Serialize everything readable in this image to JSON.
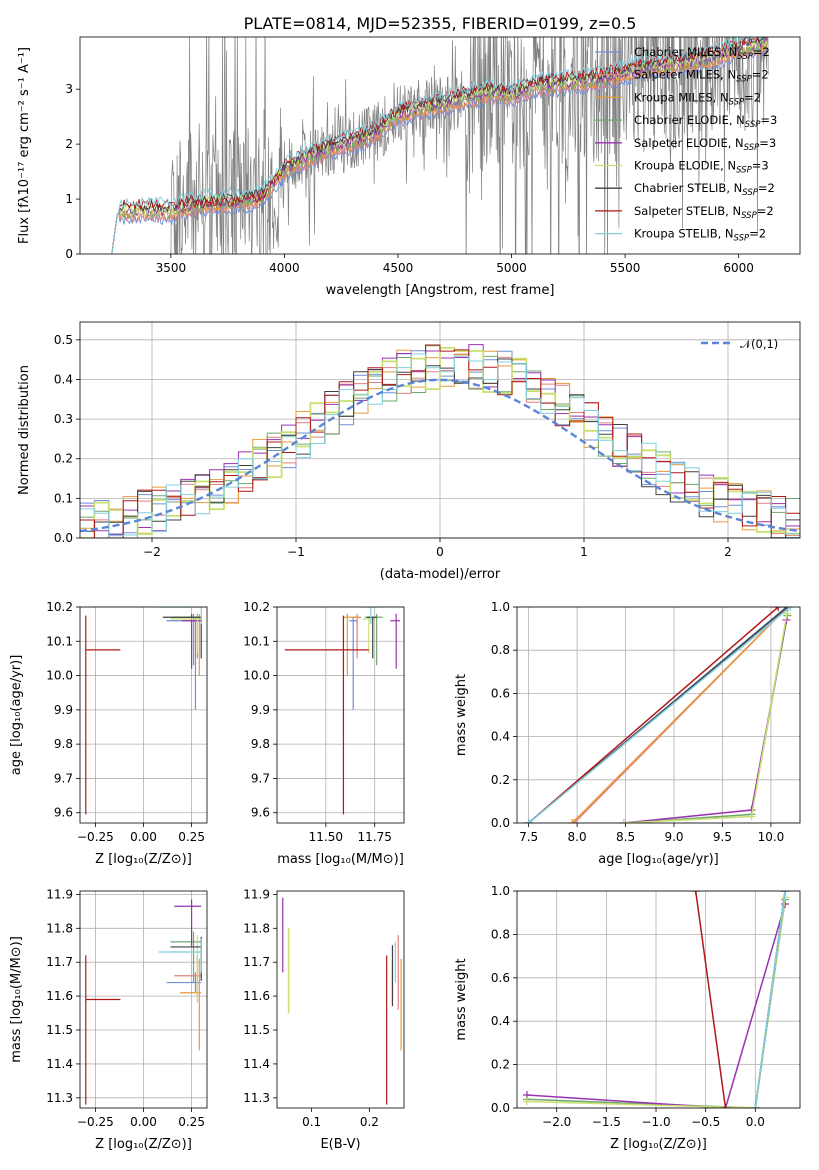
{
  "figure_title": "PLATE=0814, MJD=52355, FIBERID=0199, z=0.5",
  "models": [
    {
      "name": "Chabrier MILES, N",
      "sub": "SSP",
      "tail": "=2",
      "color": "#6f8fd8"
    },
    {
      "name": "Salpeter MILES, N",
      "sub": "SSP",
      "tail": "=2",
      "color": "#e08080"
    },
    {
      "name": "Kroupa MILES, N",
      "sub": "SSP",
      "tail": "=2",
      "color": "#e89a3c"
    },
    {
      "name": "Chabrier ELODIE, N",
      "sub": "SSP",
      "tail": "=3",
      "color": "#6fa86f"
    },
    {
      "name": "Salpeter ELODIE, N",
      "sub": "SSP",
      "tail": "=3",
      "color": "#9932b0"
    },
    {
      "name": "Kroupa ELODIE, N",
      "sub": "SSP",
      "tail": "=3",
      "color": "#c8e070"
    },
    {
      "name": "Chabrier STELIB, N",
      "sub": "SSP",
      "tail": "=2",
      "color": "#404040"
    },
    {
      "name": "Salpeter STELIB, N",
      "sub": "SSP",
      "tail": "=2",
      "color": "#b01818"
    },
    {
      "name": "Kroupa STELIB, N",
      "sub": "SSP",
      "tail": "=2",
      "color": "#80d0e0"
    }
  ],
  "data_color": "#808080",
  "chart_data": [
    {
      "id": "spectrum",
      "type": "line",
      "xlabel": "wavelength [Angstrom, rest frame]",
      "ylabel": "Flux [fλ10⁻¹⁷ erg cm⁻² s⁻¹ A⁻¹]",
      "xlim": [
        3100,
        6270
      ],
      "ylim": [
        0,
        3.95
      ],
      "xticks": [
        3500,
        4000,
        4500,
        5000,
        5500,
        6000
      ],
      "yticks": [
        0,
        1,
        2,
        3
      ],
      "observed_range": [
        3240,
        6130
      ],
      "model_curve": {
        "x": [
          3240,
          3265,
          3300,
          3400,
          3500,
          3600,
          3700,
          3800,
          3900,
          4000,
          4100,
          4200,
          4300,
          4400,
          4500,
          4600,
          4700,
          4800,
          4900,
          5000,
          5100,
          5200,
          5300,
          5400,
          5500,
          5600,
          5700,
          5800,
          5900,
          6000,
          6130
        ],
        "y": [
          0.0,
          0.75,
          0.78,
          0.8,
          0.78,
          0.9,
          0.95,
          0.96,
          1.05,
          1.55,
          1.75,
          1.95,
          2.05,
          2.2,
          2.55,
          2.65,
          2.75,
          2.85,
          2.95,
          2.9,
          3.05,
          3.1,
          3.15,
          3.2,
          3.3,
          3.4,
          3.45,
          3.5,
          3.6,
          3.75,
          3.85
        ]
      }
    },
    {
      "id": "residuals",
      "type": "line",
      "xlabel": "(data-model)/error",
      "ylabel": "Normed distribution",
      "xlim": [
        -2.5,
        2.5
      ],
      "ylim": [
        0,
        0.545
      ],
      "xticks": [
        -2,
        -1,
        0,
        1,
        2
      ],
      "yticks": [
        0.0,
        0.1,
        0.2,
        0.3,
        0.4,
        0.5
      ],
      "legend": "𝒩(0,1)",
      "normal": {
        "mean": 0,
        "sigma": 1
      }
    },
    {
      "id": "age-vs-Z",
      "type": "scatter",
      "xlabel": "Z [log₁₀(Z/Z⊙)]",
      "ylabel": "age  [log₁₀(age/yr)]",
      "xlim": [
        -0.33,
        0.33
      ],
      "ylim": [
        9.57,
        10.2
      ],
      "xticks": [
        -0.25,
        0.0,
        0.25
      ],
      "yticks": [
        9.6,
        9.7,
        9.8,
        9.9,
        10.0,
        10.1,
        10.2
      ],
      "points": [
        {
          "model": 0,
          "x": 0.27,
          "y": 10.16,
          "xerr": [
            0.15,
            0.03
          ],
          "yerr": [
            0.26,
            0.01
          ]
        },
        {
          "model": 1,
          "x": 0.28,
          "y": 10.17,
          "xerr": [
            0.12,
            0.02
          ],
          "yerr": [
            0.12,
            0.01
          ]
        },
        {
          "model": 2,
          "x": 0.29,
          "y": 10.17,
          "xerr": [
            0.1,
            0.01
          ],
          "yerr": [
            0.17,
            0.01
          ]
        },
        {
          "model": 3,
          "x": 0.26,
          "y": 10.17,
          "xerr": [
            0.12,
            0.04
          ],
          "yerr": [
            0.14,
            0.01
          ]
        },
        {
          "model": 4,
          "x": 0.25,
          "y": 10.16,
          "xerr": [
            0.05,
            0.05
          ],
          "yerr": [
            0.14,
            0.02
          ]
        },
        {
          "model": 5,
          "x": 0.28,
          "y": 10.165,
          "xerr": [
            0.14,
            0.02
          ],
          "yerr": [
            0.1,
            0.01
          ]
        },
        {
          "model": 6,
          "x": 0.3,
          "y": 10.17,
          "xerr": [
            0.2,
            0.0
          ],
          "yerr": [
            0.12,
            0.0
          ]
        },
        {
          "model": 7,
          "x": -0.3,
          "y": 10.075,
          "xerr": [
            0.0,
            0.18
          ],
          "yerr": [
            0.48,
            0.1
          ]
        },
        {
          "model": 8,
          "x": 0.3,
          "y": 10.2,
          "xerr": [
            0.22,
            0.0
          ],
          "yerr": [
            0.05,
            0.0
          ]
        }
      ]
    },
    {
      "id": "age-vs-mass",
      "type": "scatter",
      "xlabel": "mass [log₁₀(M/M⊙)]",
      "ylabel": "",
      "xlim": [
        11.25,
        11.9
      ],
      "ylim": [
        9.57,
        10.2
      ],
      "xticks": [
        11.5,
        11.75
      ],
      "yticks": [
        9.6,
        9.7,
        9.8,
        9.9,
        10.0,
        10.1,
        10.2
      ],
      "points": [
        {
          "model": 0,
          "x": 11.64,
          "y": 10.16,
          "xerr": [
            0.02,
            0.02
          ],
          "yerr": [
            0.26,
            0.01
          ]
        },
        {
          "model": 1,
          "x": 11.66,
          "y": 10.17,
          "xerr": [
            0.02,
            0.02
          ],
          "yerr": [
            0.12,
            0.01
          ]
        },
        {
          "model": 2,
          "x": 11.61,
          "y": 10.17,
          "xerr": [
            0.02,
            0.06
          ],
          "yerr": [
            0.17,
            0.01
          ]
        },
        {
          "model": 3,
          "x": 11.76,
          "y": 10.17,
          "xerr": [
            0.06,
            0.03
          ],
          "yerr": [
            0.14,
            0.01
          ]
        },
        {
          "model": 4,
          "x": 11.86,
          "y": 10.16,
          "xerr": [
            0.03,
            0.02
          ],
          "yerr": [
            0.14,
            0.02
          ]
        },
        {
          "model": 5,
          "x": 11.72,
          "y": 10.165,
          "xerr": [
            0.03,
            0.03
          ],
          "yerr": [
            0.1,
            0.01
          ]
        },
        {
          "model": 6,
          "x": 11.74,
          "y": 10.17,
          "xerr": [
            0.03,
            0.02
          ],
          "yerr": [
            0.12,
            0.0
          ]
        },
        {
          "model": 7,
          "x": 11.59,
          "y": 10.075,
          "xerr": [
            0.3,
            0.13
          ],
          "yerr": [
            0.48,
            0.1
          ]
        },
        {
          "model": 8,
          "x": 11.73,
          "y": 10.2,
          "xerr": [
            0.04,
            0.04
          ],
          "yerr": [
            0.05,
            0.0
          ]
        }
      ]
    },
    {
      "id": "weight-vs-age",
      "type": "line",
      "xlabel": "age  [log₁₀(age/yr)]",
      "ylabel": "mass weight",
      "xlim": [
        7.38,
        10.3
      ],
      "ylim": [
        0,
        1.0
      ],
      "xticks": [
        7.5,
        8.0,
        8.5,
        9.0,
        9.5,
        10.0
      ],
      "yticks": [
        0.0,
        0.2,
        0.4,
        0.6,
        0.8,
        1.0
      ],
      "series": [
        {
          "model": 0,
          "x": [
            7.5,
            10.16
          ],
          "y": [
            0.0,
            1.0
          ]
        },
        {
          "model": 1,
          "x": [
            7.97,
            10.17
          ],
          "y": [
            0.0,
            1.0
          ]
        },
        {
          "model": 2,
          "x": [
            7.95,
            10.17
          ],
          "y": [
            0.0,
            1.0
          ]
        },
        {
          "model": 3,
          "x": [
            8.48,
            9.8,
            10.17
          ],
          "y": [
            0.0,
            0.04,
            0.96
          ]
        },
        {
          "model": 4,
          "x": [
            8.48,
            9.8,
            10.16
          ],
          "y": [
            0.0,
            0.06,
            0.94
          ]
        },
        {
          "model": 5,
          "x": [
            8.48,
            9.8,
            10.165
          ],
          "y": [
            0.0,
            0.03,
            0.97
          ]
        },
        {
          "model": 6,
          "x": [
            7.5,
            10.17
          ],
          "y": [
            0.0,
            1.0
          ]
        },
        {
          "model": 7,
          "x": [
            7.5,
            10.075
          ],
          "y": [
            0.0,
            1.0
          ]
        },
        {
          "model": 8,
          "x": [
            7.5,
            10.2
          ],
          "y": [
            0.0,
            1.0
          ]
        }
      ]
    },
    {
      "id": "mass-vs-Z",
      "type": "scatter",
      "xlabel": "Z [log₁₀(Z/Z⊙)]",
      "ylabel": "mass [log₁₀(M/M⊙)]",
      "xlim": [
        -0.33,
        0.33
      ],
      "ylim": [
        11.27,
        11.91
      ],
      "xticks": [
        -0.25,
        0.0,
        0.25
      ],
      "yticks": [
        11.3,
        11.4,
        11.5,
        11.6,
        11.7,
        11.8,
        11.9
      ],
      "points": [
        {
          "model": 0,
          "x": 0.27,
          "y": 11.64,
          "xerr": [
            0.15,
            0.03
          ],
          "yerr": [
            0.03,
            0.03
          ]
        },
        {
          "model": 1,
          "x": 0.28,
          "y": 11.66,
          "xerr": [
            0.12,
            0.02
          ],
          "yerr": [
            0.06,
            0.06
          ]
        },
        {
          "model": 2,
          "x": 0.29,
          "y": 11.61,
          "xerr": [
            0.1,
            0.01
          ],
          "yerr": [
            0.17,
            0.1
          ]
        },
        {
          "model": 3,
          "x": 0.26,
          "y": 11.76,
          "xerr": [
            0.12,
            0.04
          ],
          "yerr": [
            0.12,
            0.03
          ]
        },
        {
          "model": 4,
          "x": 0.25,
          "y": 11.865,
          "xerr": [
            0.09,
            0.05
          ],
          "yerr": [
            0.12,
            0.02
          ]
        },
        {
          "model": 5,
          "x": 0.28,
          "y": 11.73,
          "xerr": [
            0.14,
            0.02
          ],
          "yerr": [
            0.15,
            0.05
          ]
        },
        {
          "model": 6,
          "x": 0.3,
          "y": 11.745,
          "xerr": [
            0.16,
            0.0
          ],
          "yerr": [
            0.1,
            0.03
          ]
        },
        {
          "model": 7,
          "x": -0.3,
          "y": 11.59,
          "xerr": [
            0.0,
            0.18
          ],
          "yerr": [
            0.31,
            0.13
          ]
        },
        {
          "model": 8,
          "x": 0.3,
          "y": 11.73,
          "xerr": [
            0.22,
            0.0
          ],
          "yerr": [
            0.06,
            0.04
          ]
        }
      ]
    },
    {
      "id": "mass-vs-ebv",
      "type": "scatter",
      "xlabel": "E(B-V)",
      "ylabel": "",
      "xlim": [
        0.04,
        0.26
      ],
      "ylim": [
        11.27,
        11.91
      ],
      "xticks": [
        0.1,
        0.2
      ],
      "yticks": [
        11.3,
        11.4,
        11.5,
        11.6,
        11.7,
        11.8,
        11.9
      ],
      "points": [
        {
          "model": 0,
          "x": 0.24,
          "y": 11.64,
          "yerr": [
            0.06,
            0.06
          ]
        },
        {
          "model": 1,
          "x": 0.25,
          "y": 11.66,
          "yerr": [
            0.1,
            0.12
          ]
        },
        {
          "model": 2,
          "x": 0.255,
          "y": 11.61,
          "yerr": [
            0.17,
            0.1
          ]
        },
        {
          "model": 3,
          "x": 0.06,
          "y": 11.7,
          "yerr": [
            0.15,
            0.1
          ]
        },
        {
          "model": 4,
          "x": 0.05,
          "y": 11.8,
          "yerr": [
            0.13,
            0.09
          ]
        },
        {
          "model": 5,
          "x": 0.06,
          "y": 11.68,
          "yerr": [
            0.13,
            0.12
          ]
        },
        {
          "model": 6,
          "x": 0.24,
          "y": 11.63,
          "yerr": [
            0.06,
            0.12
          ]
        },
        {
          "model": 7,
          "x": 0.23,
          "y": 11.59,
          "yerr": [
            0.31,
            0.13
          ]
        },
        {
          "model": 8,
          "x": 0.245,
          "y": 11.7,
          "yerr": [
            0.06,
            0.06
          ]
        }
      ]
    },
    {
      "id": "weight-vs-Z",
      "type": "line",
      "xlabel": "Z [log₁₀(Z/Z⊙)]",
      "ylabel": "mass weight",
      "xlim": [
        -2.4,
        0.45
      ],
      "ylim": [
        0,
        1.0
      ],
      "xticks": [
        -2.0,
        -1.5,
        -1.0,
        -0.5,
        0.0
      ],
      "yticks": [
        0.0,
        0.2,
        0.4,
        0.6,
        0.8,
        1.0
      ],
      "series": [
        {
          "model": 0,
          "x": [
            0.0,
            0.3
          ],
          "y": [
            0.0,
            1.0
          ]
        },
        {
          "model": 1,
          "x": [
            0.0,
            0.3
          ],
          "y": [
            0.0,
            1.0
          ]
        },
        {
          "model": 2,
          "x": [
            0.0,
            0.3
          ],
          "y": [
            0.0,
            1.0
          ]
        },
        {
          "model": 3,
          "x": [
            -2.3,
            0.0,
            0.3
          ],
          "y": [
            0.04,
            0.0,
            0.96
          ]
        },
        {
          "model": 4,
          "x": [
            -2.3,
            -0.3,
            0.3
          ],
          "y": [
            0.06,
            0.0,
            0.94
          ]
        },
        {
          "model": 5,
          "x": [
            -2.3,
            0.0,
            0.3
          ],
          "y": [
            0.03,
            0.0,
            0.97
          ]
        },
        {
          "model": 6,
          "x": [
            0.0,
            0.3
          ],
          "y": [
            0.0,
            1.0
          ]
        },
        {
          "model": 7,
          "x": [
            -0.3,
            -0.6
          ],
          "y": [
            0.0,
            1.0
          ]
        },
        {
          "model": 8,
          "x": [
            0.0,
            0.3
          ],
          "y": [
            0.0,
            1.0
          ]
        }
      ]
    }
  ]
}
